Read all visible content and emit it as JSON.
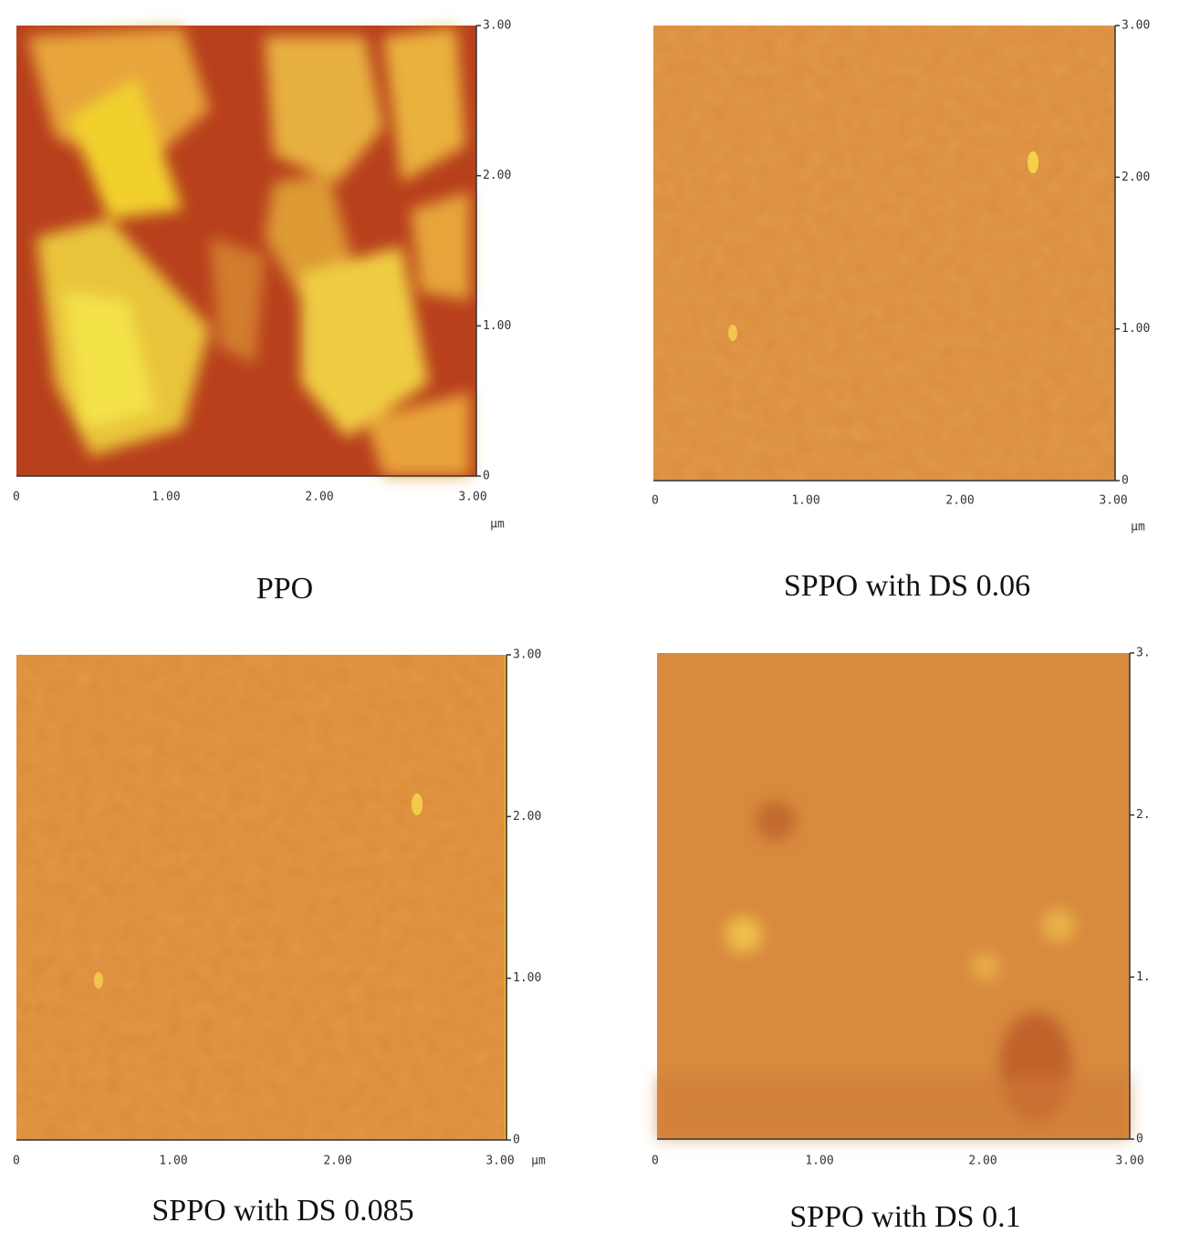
{
  "panels": [
    {
      "caption": "PPO",
      "xticks": [
        "0",
        "1.00",
        "2.00",
        "3.00"
      ],
      "yticks": [
        "3.00",
        "2.00",
        "1.00",
        "0"
      ],
      "unit": "µm"
    },
    {
      "caption": "SPPO with DS 0.06",
      "xticks": [
        "0",
        "1.00",
        "2.00",
        "3.00"
      ],
      "yticks": [
        "3.00",
        "2.00",
        "1.00",
        "0"
      ],
      "unit": "µm"
    },
    {
      "caption": "SPPO with DS 0.085",
      "xticks": [
        "0",
        "1.00",
        "2.00",
        "3.00"
      ],
      "yticks": [
        "3.00",
        "2.00",
        "1.00",
        "0"
      ],
      "unit": "µm"
    },
    {
      "caption": "SPPO with DS 0.1",
      "xticks": [
        "0",
        "1.00",
        "2.00",
        "3.00"
      ],
      "yticks": [
        "3.",
        "2.",
        "1.",
        "0"
      ]
    }
  ]
}
